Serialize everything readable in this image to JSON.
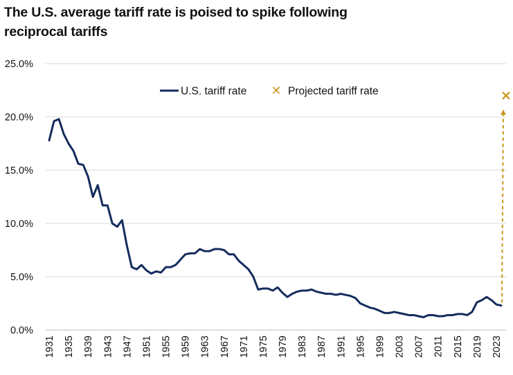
{
  "title_line1": "The U.S. average tariff rate is poised to spike following",
  "title_line2": "reciprocal tariffs",
  "chart_data": {
    "type": "line",
    "title": "The U.S. average tariff rate is poised to spike following reciprocal tariffs",
    "xlabel": "",
    "ylabel": "",
    "ylim": [
      0,
      25
    ],
    "xlim": [
      1931,
      2025
    ],
    "y_ticks": [
      "0.0%",
      "5.0%",
      "10.0%",
      "15.0%",
      "20.0%",
      "25.0%"
    ],
    "x_ticks": [
      "1931",
      "1935",
      "1939",
      "1943",
      "1947",
      "1951",
      "1955",
      "1959",
      "1963",
      "1967",
      "1971",
      "1975",
      "1979",
      "1983",
      "1987",
      "1991",
      "1995",
      "1999",
      "2003",
      "2007",
      "2011",
      "2015",
      "2019",
      "2023"
    ],
    "grid": true,
    "legend_position": "top-right",
    "colors": {
      "actual": "#142b5c",
      "projected": "#c9971f",
      "grid": "#d9d9d9"
    },
    "series": [
      {
        "name": "U.S. tariff rate",
        "x": [
          1931,
          1932,
          1933,
          1934,
          1935,
          1936,
          1937,
          1938,
          1939,
          1940,
          1941,
          1942,
          1943,
          1944,
          1945,
          1946,
          1947,
          1948,
          1949,
          1950,
          1951,
          1952,
          1953,
          1954,
          1955,
          1956,
          1957,
          1958,
          1959,
          1960,
          1961,
          1962,
          1963,
          1964,
          1965,
          1966,
          1967,
          1968,
          1969,
          1970,
          1971,
          1972,
          1973,
          1974,
          1975,
          1976,
          1977,
          1978,
          1979,
          1980,
          1981,
          1982,
          1983,
          1984,
          1985,
          1986,
          1987,
          1988,
          1989,
          1990,
          1991,
          1992,
          1993,
          1994,
          1995,
          1996,
          1997,
          1998,
          1999,
          2000,
          2001,
          2002,
          2003,
          2004,
          2005,
          2006,
          2007,
          2008,
          2009,
          2010,
          2011,
          2012,
          2013,
          2014,
          2015,
          2016,
          2017,
          2018,
          2019,
          2020,
          2021,
          2022,
          2023,
          2024
        ],
        "values": [
          17.8,
          19.6,
          19.8,
          18.4,
          17.5,
          16.8,
          15.6,
          15.5,
          14.4,
          12.5,
          13.6,
          11.7,
          11.7,
          10.0,
          9.7,
          10.3,
          7.9,
          5.9,
          5.7,
          6.1,
          5.6,
          5.3,
          5.5,
          5.4,
          5.9,
          5.9,
          6.1,
          6.6,
          7.1,
          7.2,
          7.2,
          7.6,
          7.4,
          7.4,
          7.6,
          7.6,
          7.5,
          7.1,
          7.1,
          6.5,
          6.1,
          5.7,
          5.0,
          3.8,
          3.9,
          3.9,
          3.7,
          4.0,
          3.5,
          3.1,
          3.4,
          3.6,
          3.7,
          3.7,
          3.8,
          3.6,
          3.5,
          3.4,
          3.4,
          3.3,
          3.4,
          3.3,
          3.2,
          3.0,
          2.5,
          2.3,
          2.1,
          2.0,
          1.8,
          1.6,
          1.6,
          1.7,
          1.6,
          1.5,
          1.4,
          1.4,
          1.3,
          1.2,
          1.4,
          1.4,
          1.3,
          1.3,
          1.4,
          1.4,
          1.5,
          1.5,
          1.4,
          1.7,
          2.6,
          2.8,
          3.1,
          2.8,
          2.4,
          2.3
        ]
      },
      {
        "name": "Projected tariff rate",
        "x": [
          2025
        ],
        "values": [
          22.0
        ]
      }
    ]
  }
}
